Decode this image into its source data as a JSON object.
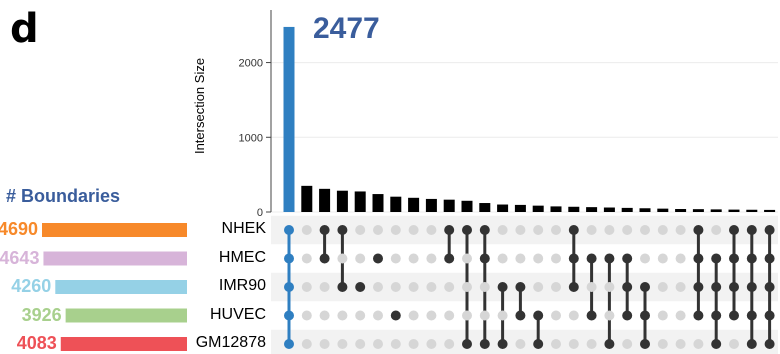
{
  "panel_label": "d",
  "top_bar_label": "2477",
  "colors": {
    "highlight": "#2f7fc1",
    "bar": "#000000",
    "dot_on": "#333333",
    "dot_off": "#d6d6d6",
    "stripe": "#f2f2f2",
    "title_blue": "#3a5d9c"
  },
  "chart_data": {
    "type": "bar",
    "ylabel": "Intersection Size",
    "ylim": [
      0,
      2650
    ],
    "yticks": [
      0,
      1000,
      2000
    ],
    "set_size_title": "# Boundaries",
    "sets": [
      {
        "name": "NHEK",
        "count_label": "4690",
        "size": 4690,
        "color": "#f7892a"
      },
      {
        "name": "HMEC",
        "count_label": "4643",
        "size": 4643,
        "color": "#d7b4d9"
      },
      {
        "name": "IMR90",
        "count_label": "4260",
        "size": 4260,
        "color": "#95d1e6"
      },
      {
        "name": "HUVEC",
        "count_label": "3926",
        "size": 3926,
        "color": "#a8d08d"
      },
      {
        "name": "GM12878",
        "count_label": "4083",
        "size": 4083,
        "color": "#ee5157"
      }
    ],
    "intersections": [
      {
        "value": 2477,
        "members": [
          0,
          1,
          2,
          3,
          4
        ],
        "highlight": true
      },
      {
        "value": 350,
        "members": []
      },
      {
        "value": 310,
        "members": [
          0,
          1
        ]
      },
      {
        "value": 285,
        "members": [
          0,
          2
        ]
      },
      {
        "value": 275,
        "members": [
          2
        ]
      },
      {
        "value": 240,
        "members": [
          1
        ]
      },
      {
        "value": 205,
        "members": [
          3
        ]
      },
      {
        "value": 190,
        "members": []
      },
      {
        "value": 175,
        "members": []
      },
      {
        "value": 165,
        "members": [
          0,
          1
        ]
      },
      {
        "value": 150,
        "members": [
          0,
          4
        ]
      },
      {
        "value": 120,
        "members": [
          0,
          1,
          4
        ]
      },
      {
        "value": 100,
        "members": [
          2,
          4
        ]
      },
      {
        "value": 95,
        "members": [
          2,
          3
        ]
      },
      {
        "value": 85,
        "members": [
          3,
          4
        ]
      },
      {
        "value": 75,
        "members": []
      },
      {
        "value": 70,
        "members": [
          0,
          1,
          2
        ]
      },
      {
        "value": 65,
        "members": [
          1,
          3
        ]
      },
      {
        "value": 60,
        "members": [
          1,
          4
        ]
      },
      {
        "value": 55,
        "members": [
          1,
          2,
          3
        ]
      },
      {
        "value": 50,
        "members": [
          2,
          3,
          4
        ]
      },
      {
        "value": 45,
        "members": []
      },
      {
        "value": 40,
        "members": []
      },
      {
        "value": 38,
        "members": [
          0,
          1,
          2,
          3
        ]
      },
      {
        "value": 35,
        "members": [
          1,
          2,
          3,
          4
        ]
      },
      {
        "value": 32,
        "members": [
          0,
          1,
          2,
          3
        ]
      },
      {
        "value": 30,
        "members": [
          0,
          1,
          2,
          3,
          4
        ]
      },
      {
        "value": 28,
        "members": [
          0,
          1,
          2,
          3,
          4
        ]
      },
      {
        "value": 25,
        "members": [
          0,
          1,
          2,
          3,
          4
        ]
      }
    ]
  }
}
